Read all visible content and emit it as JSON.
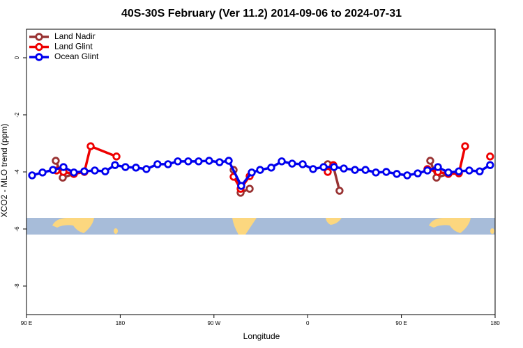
{
  "chart_data": {
    "type": "line",
    "title": "40S-30S February (Ver 11.2)   2014-09-06 to 2024-07-31",
    "xlabel": "Longitude",
    "ylabel": "XCO2 - MLO trend (ppm)",
    "xlim": [
      90,
      540
    ],
    "ylim": [
      -9,
      1
    ],
    "xticks": [
      {
        "value": 90,
        "label": "90 E"
      },
      {
        "value": 180,
        "label": "180"
      },
      {
        "value": 270,
        "label": "90 W"
      },
      {
        "value": 360,
        "label": "0"
      },
      {
        "value": 450,
        "label": "90 E"
      },
      {
        "value": 540,
        "label": "180"
      }
    ],
    "yticks": [
      0,
      -2,
      -4,
      -6,
      -8
    ],
    "legend": "upper left",
    "series": [
      {
        "name": "Land Nadir",
        "color": "#993333",
        "x": [
          118.1,
          124.8,
          135.5,
          null,
          288.9,
          295.6,
          304.3,
          null,
          379.3,
          384.6,
          390.6,
          null,
          477.7,
          483.7,
          495.1
        ],
        "values": [
          -3.61,
          -4.2,
          -4.07,
          null,
          -3.93,
          -4.73,
          -4.59,
          null,
          -3.73,
          -3.8,
          -4.66,
          null,
          -3.61,
          -4.2,
          -4.07
        ]
      },
      {
        "name": "Land Glint",
        "color": "#ee0000",
        "x": [
          118.8,
          125.5,
          135.5,
          145.6,
          151.6,
          176.4,
          null,
          288.9,
          295.6,
          304.3,
          null,
          379.3,
          384.6,
          null,
          475,
          485.1,
          495.1,
          505.2,
          511.2,
          null,
          535.2
        ],
        "values": [
          -3.95,
          -4.0,
          -4.07,
          -4.0,
          -3.1,
          -3.46,
          null,
          -4.17,
          -4.59,
          -4.15,
          null,
          -4.0,
          -3.76,
          null,
          -3.9,
          -4.0,
          -4.07,
          -4.05,
          -3.1,
          null,
          -3.46
        ]
      },
      {
        "name": "Ocean Glint",
        "color": "#0000ee",
        "x": [
          95.4,
          105.4,
          115.4,
          125.5,
          135.5,
          145.5,
          155.6,
          165.6,
          175,
          185,
          195.1,
          205.1,
          215.8,
          225.9,
          235.3,
          245.3,
          255.3,
          265.4,
          275.4,
          284.2,
          296.2,
          306.3,
          314.3,
          325,
          335.1,
          345.1,
          355.2,
          365.2,
          375.3,
          385.3,
          394.7,
          405.4,
          415.5,
          425.5,
          435.5,
          445.6,
          455.6,
          465.7,
          475,
          485.1,
          495.1,
          505.2,
          515.2,
          525.2,
          535.2
        ],
        "values": [
          -4.12,
          -4.02,
          -3.93,
          -3.83,
          -4.02,
          -3.98,
          -3.95,
          -3.98,
          -3.76,
          -3.83,
          -3.85,
          -3.9,
          -3.73,
          -3.73,
          -3.63,
          -3.63,
          -3.63,
          -3.61,
          -3.66,
          -3.61,
          -4.49,
          -4.02,
          -3.93,
          -3.85,
          -3.63,
          -3.71,
          -3.73,
          -3.9,
          -3.83,
          -3.83,
          -3.88,
          -3.93,
          -3.93,
          -4.02,
          -4.0,
          -4.07,
          -4.12,
          -4.05,
          -3.95,
          -3.83,
          -4.02,
          -3.98,
          -3.95,
          -3.98,
          -3.76
        ]
      }
    ]
  }
}
